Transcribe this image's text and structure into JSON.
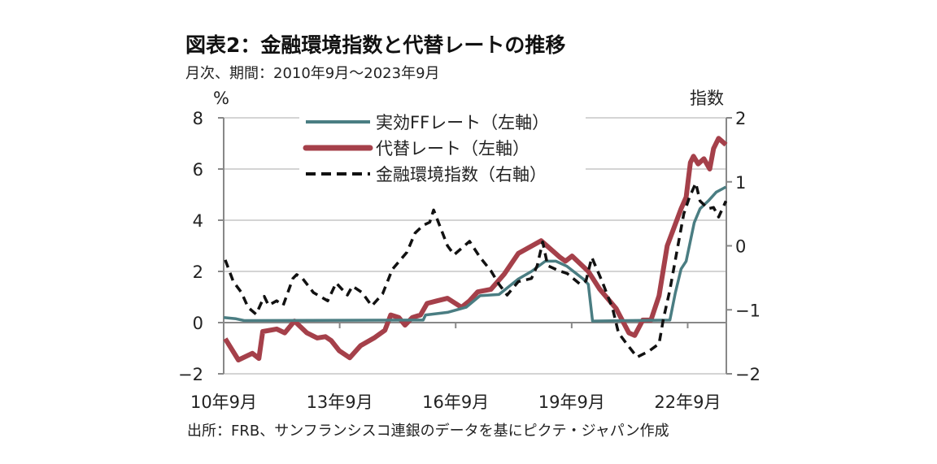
{
  "title": "図表2：金融環境指数と代替レートの推移",
  "subtitle": "月次、期間：2010年9月〜2023年9月",
  "source": "出所：FRB、サンフランシスコ連銀のデータを基にピクテ・ジャパン作成",
  "chart_data": {
    "type": "line",
    "title": "図表2：金融環境指数と代替レートの推移",
    "ylabel": "%",
    "y2label": "指数",
    "ylim": [
      -2,
      8
    ],
    "y2lim": [
      -2,
      2
    ],
    "xlim": [
      2010.75,
      2023.75
    ],
    "yticks": [
      "8",
      "6",
      "4",
      "2",
      "0",
      "−2"
    ],
    "yticks_values": [
      8,
      6,
      4,
      2,
      0,
      -2
    ],
    "y2ticks": [
      "2",
      "1",
      "0",
      "−1",
      "−2"
    ],
    "y2ticks_values": [
      2,
      1,
      0,
      -1,
      -2
    ],
    "xticks": [
      "10年9月",
      "13年9月",
      "16年9月",
      "19年9月",
      "22年9月"
    ],
    "xticks_values": [
      2010.75,
      2013.75,
      2016.75,
      2019.75,
      2022.75
    ],
    "grid": true,
    "legend_position": "top-center",
    "series": [
      {
        "name": "実効FFレート（左軸）",
        "axis": "left",
        "color": "#4a7d82",
        "style": "solid",
        "x": [
          2010.75,
          2011.07,
          2011.28,
          2015.91,
          2015.97,
          2016.54,
          2017.02,
          2017.38,
          2017.87,
          2018.37,
          2018.71,
          2019.07,
          2019.34,
          2019.63,
          2020.05,
          2020.18,
          2020.29,
          2022.29,
          2022.43,
          2022.58,
          2022.71,
          2022.92,
          2023.07,
          2023.28,
          2023.49,
          2023.74
        ],
        "y": [
          0.2,
          0.15,
          0.08,
          0.1,
          0.3,
          0.4,
          0.6,
          1.05,
          1.1,
          1.7,
          2.0,
          2.4,
          2.4,
          2.2,
          1.7,
          1.5,
          0.06,
          0.1,
          1.15,
          2.1,
          2.4,
          3.9,
          4.45,
          4.75,
          5.1,
          5.3
        ]
      },
      {
        "name": "代替レート（左軸）",
        "axis": "left",
        "color": "#a5404a",
        "style": "solid",
        "x": [
          2010.79,
          2011.13,
          2011.49,
          2011.66,
          2011.76,
          2012.12,
          2012.33,
          2012.58,
          2012.9,
          2013.17,
          2013.38,
          2013.53,
          2013.74,
          2014.01,
          2014.29,
          2014.64,
          2014.92,
          2015.07,
          2015.28,
          2015.44,
          2015.63,
          2015.84,
          2016.01,
          2016.27,
          2016.54,
          2016.9,
          2017.11,
          2017.32,
          2017.66,
          2018.01,
          2018.37,
          2018.96,
          2019.45,
          2019.59,
          2019.76,
          2020.18,
          2020.48,
          2020.9,
          2021.23,
          2021.38,
          2021.59,
          2021.8,
          2022.01,
          2022.22,
          2022.37,
          2022.58,
          2022.71,
          2022.82,
          2022.9,
          2023.02,
          2023.17,
          2023.32,
          2023.42,
          2023.55,
          2023.74
        ],
        "y": [
          -0.63,
          -1.46,
          -1.2,
          -1.4,
          -0.35,
          -0.25,
          -0.4,
          0.06,
          -0.4,
          -0.6,
          -0.55,
          -0.7,
          -1.1,
          -1.37,
          -0.9,
          -0.6,
          -0.3,
          0.3,
          0.2,
          -0.1,
          0.2,
          0.3,
          0.75,
          0.85,
          0.95,
          0.6,
          0.85,
          1.2,
          1.3,
          1.9,
          2.7,
          3.2,
          2.55,
          2.4,
          2.6,
          2.0,
          1.3,
          0.55,
          -0.4,
          -0.5,
          0.1,
          0.1,
          1.05,
          3.0,
          3.6,
          4.45,
          4.9,
          6.25,
          6.5,
          6.2,
          6.4,
          6.0,
          6.8,
          7.2,
          6.95
        ]
      },
      {
        "name": "金融環境指数（右軸）",
        "axis": "right",
        "color": "#111111",
        "style": "dashed",
        "x": [
          2010.79,
          2011.0,
          2011.21,
          2011.38,
          2011.59,
          2011.8,
          2011.91,
          2012.12,
          2012.29,
          2012.54,
          2012.64,
          2012.79,
          2013.07,
          2013.44,
          2013.66,
          2013.95,
          2014.08,
          2014.33,
          2014.58,
          2014.86,
          2015.11,
          2015.49,
          2015.7,
          2015.91,
          2016.08,
          2016.18,
          2016.54,
          2016.71,
          2017.11,
          2017.38,
          2017.66,
          2017.87,
          2018.08,
          2018.37,
          2018.71,
          2018.86,
          2019.0,
          2019.13,
          2019.42,
          2019.63,
          2019.97,
          2020.12,
          2020.27,
          2020.54,
          2020.81,
          2020.96,
          2021.17,
          2021.44,
          2021.74,
          2022.01,
          2022.12,
          2022.29,
          2022.48,
          2022.65,
          2022.79,
          2022.96,
          2023.07,
          2023.28,
          2023.42,
          2023.55,
          2023.74
        ],
        "y": [
          -0.22,
          -0.56,
          -0.73,
          -0.96,
          -1.07,
          -0.79,
          -0.93,
          -0.86,
          -0.93,
          -0.51,
          -0.45,
          -0.51,
          -0.73,
          -0.86,
          -0.58,
          -0.77,
          -0.63,
          -0.73,
          -0.94,
          -0.75,
          -0.37,
          -0.1,
          0.2,
          0.32,
          0.37,
          0.56,
          0.0,
          -0.14,
          0.07,
          -0.18,
          -0.39,
          -0.6,
          -0.77,
          -0.56,
          -0.51,
          -0.31,
          0.06,
          -0.31,
          -0.39,
          -0.43,
          -0.6,
          -0.55,
          -0.18,
          -0.56,
          -0.98,
          -1.36,
          -1.53,
          -1.74,
          -1.65,
          -1.53,
          -1.15,
          -0.69,
          -0.06,
          0.5,
          0.75,
          0.98,
          0.7,
          0.58,
          0.6,
          0.45,
          0.7
        ]
      }
    ]
  }
}
